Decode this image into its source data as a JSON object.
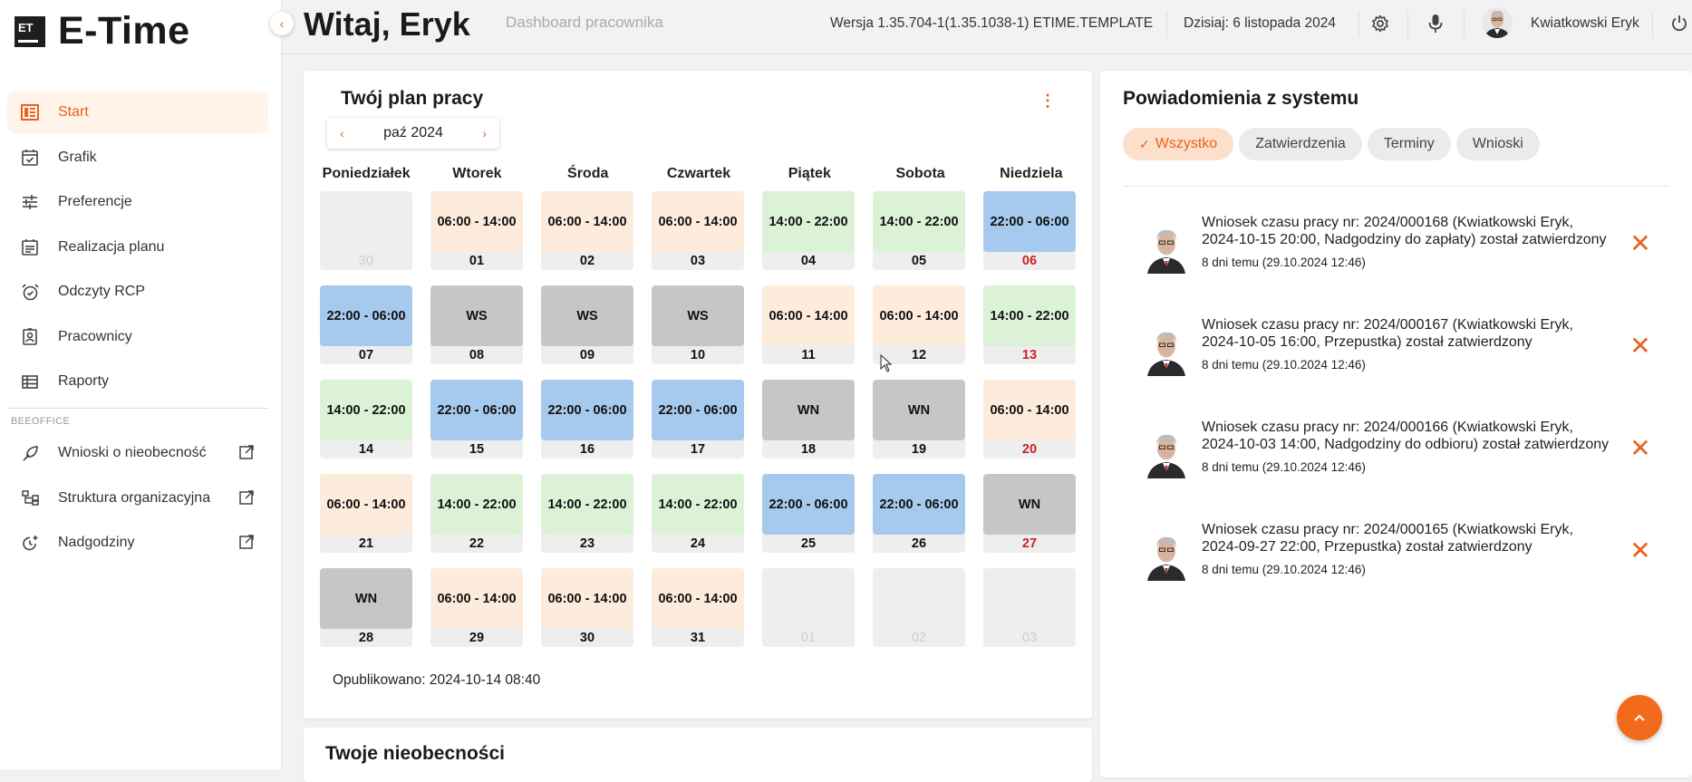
{
  "app": {
    "logo_mark": "ET",
    "logo_text": "E-Time"
  },
  "sidebar": {
    "items": [
      {
        "label": "Start",
        "icon": "dashboard-icon",
        "active": true
      },
      {
        "label": "Grafik",
        "icon": "calendar-check-icon"
      },
      {
        "label": "Preferencje",
        "icon": "sliders-icon"
      },
      {
        "label": "Realizacja planu",
        "icon": "calendar-list-icon"
      },
      {
        "label": "Odczyty RCP",
        "icon": "alarm-clock-icon"
      },
      {
        "label": "Pracownicy",
        "icon": "badge-icon"
      },
      {
        "label": "Raporty",
        "icon": "table-icon"
      }
    ],
    "section_label": "BEEOFFICE",
    "external_items": [
      {
        "label": "Wnioski o nieobecność",
        "icon": "leaf-pen-icon"
      },
      {
        "label": "Struktura organizacyjna",
        "icon": "org-chart-icon"
      },
      {
        "label": "Nadgodziny",
        "icon": "clock-plus-icon"
      }
    ]
  },
  "header": {
    "greeting": "Witaj, Eryk",
    "subtitle": "Dashboard pracownika",
    "version": "Wersja 1.35.704-1(1.35.1038-1) ETIME.TEMPLATE",
    "today": "Dzisiaj: 6 listopada 2024",
    "user_name": "Kwiatkowski Eryk"
  },
  "plan": {
    "title": "Twój plan pracy",
    "month": "paź 2024",
    "weekdays": [
      "Poniedziałek",
      "Wtorek",
      "Środa",
      "Czwartek",
      "Piątek",
      "Sobota",
      "Niedziela"
    ],
    "days": [
      {
        "d": "30",
        "shift": "",
        "type": "empty"
      },
      {
        "d": "01",
        "shift": "06:00 - 14:00",
        "type": "morning"
      },
      {
        "d": "02",
        "shift": "06:00 - 14:00",
        "type": "morning"
      },
      {
        "d": "03",
        "shift": "06:00 - 14:00",
        "type": "morning"
      },
      {
        "d": "04",
        "shift": "14:00 - 22:00",
        "type": "afternoon"
      },
      {
        "d": "05",
        "shift": "14:00 - 22:00",
        "type": "afternoon"
      },
      {
        "d": "06",
        "shift": "22:00 - 06:00",
        "type": "night"
      },
      {
        "d": "07",
        "shift": "22:00 - 06:00",
        "type": "night"
      },
      {
        "d": "08",
        "shift": "WS",
        "type": "off"
      },
      {
        "d": "09",
        "shift": "WS",
        "type": "off"
      },
      {
        "d": "10",
        "shift": "WS",
        "type": "off"
      },
      {
        "d": "11",
        "shift": "06:00 - 14:00",
        "type": "morning"
      },
      {
        "d": "12",
        "shift": "06:00 - 14:00",
        "type": "morning"
      },
      {
        "d": "13",
        "shift": "14:00 - 22:00",
        "type": "afternoon"
      },
      {
        "d": "14",
        "shift": "14:00 - 22:00",
        "type": "afternoon"
      },
      {
        "d": "15",
        "shift": "22:00 - 06:00",
        "type": "night"
      },
      {
        "d": "16",
        "shift": "22:00 - 06:00",
        "type": "night"
      },
      {
        "d": "17",
        "shift": "22:00 - 06:00",
        "type": "night"
      },
      {
        "d": "18",
        "shift": "WN",
        "type": "off"
      },
      {
        "d": "19",
        "shift": "WN",
        "type": "off"
      },
      {
        "d": "20",
        "shift": "06:00 - 14:00",
        "type": "morning"
      },
      {
        "d": "21",
        "shift": "06:00 - 14:00",
        "type": "morning"
      },
      {
        "d": "22",
        "shift": "14:00 - 22:00",
        "type": "afternoon"
      },
      {
        "d": "23",
        "shift": "14:00 - 22:00",
        "type": "afternoon"
      },
      {
        "d": "24",
        "shift": "14:00 - 22:00",
        "type": "afternoon"
      },
      {
        "d": "25",
        "shift": "22:00 - 06:00",
        "type": "night"
      },
      {
        "d": "26",
        "shift": "22:00 - 06:00",
        "type": "night"
      },
      {
        "d": "27",
        "shift": "WN",
        "type": "off"
      },
      {
        "d": "28",
        "shift": "WN",
        "type": "off"
      },
      {
        "d": "29",
        "shift": "06:00 - 14:00",
        "type": "morning"
      },
      {
        "d": "30",
        "shift": "06:00 - 14:00",
        "type": "morning"
      },
      {
        "d": "31",
        "shift": "06:00 - 14:00",
        "type": "morning"
      },
      {
        "d": "01",
        "shift": "",
        "type": "empty"
      },
      {
        "d": "02",
        "shift": "",
        "type": "empty"
      },
      {
        "d": "03",
        "shift": "",
        "type": "empty"
      }
    ],
    "published": "Opublikowano: 2024-10-14 08:40"
  },
  "absence": {
    "title": "Twoje nieobecności"
  },
  "notifications": {
    "title": "Powiadomienia z systemu",
    "filters": [
      {
        "label": "Wszystko",
        "active": true
      },
      {
        "label": "Zatwierdzenia"
      },
      {
        "label": "Terminy"
      },
      {
        "label": "Wnioski"
      }
    ],
    "items": [
      {
        "text": "Wniosek czasu pracy nr: 2024/000168 (Kwiatkowski Eryk, 2024-10-15 20:00, Nadgodziny do zapłaty) został zatwierdzony",
        "time": "8 dni temu (29.10.2024 12:46)"
      },
      {
        "text": "Wniosek czasu pracy nr: 2024/000167 (Kwiatkowski Eryk, 2024-10-05 16:00, Przepustka) został zatwierdzony",
        "time": "8 dni temu (29.10.2024 12:46)"
      },
      {
        "text": "Wniosek czasu pracy nr: 2024/000166 (Kwiatkowski Eryk, 2024-10-03 14:00, Nadgodziny do odbioru) został zatwierdzony",
        "time": "8 dni temu (29.10.2024 12:46)"
      },
      {
        "text": "Wniosek czasu pracy nr: 2024/000165 (Kwiatkowski Eryk, 2024-09-27 22:00, Przepustka) został zatwierdzony",
        "time": "8 dni temu (29.10.2024 12:46)"
      }
    ]
  },
  "colors": {
    "accent": "#e8621d",
    "morning": "#fdebdc",
    "afternoon": "#dcf2d7",
    "night": "#a6c9ee",
    "off": "#c6c6c6",
    "empty": "#eeeeee",
    "sunday": "#d01f1f"
  }
}
